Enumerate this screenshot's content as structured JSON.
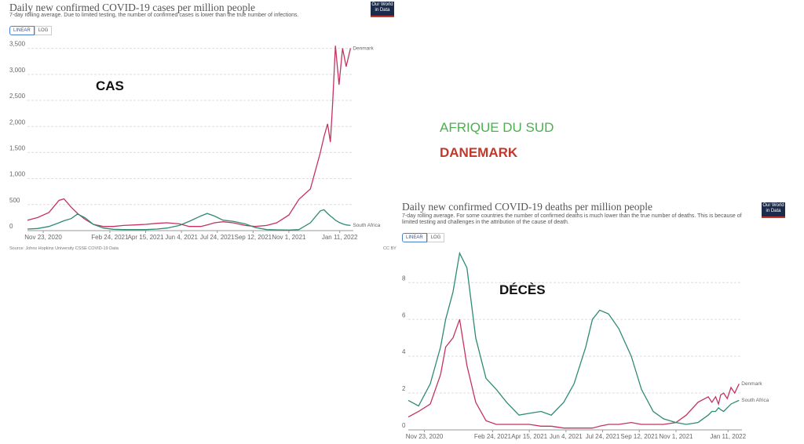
{
  "chart_data": [
    {
      "type": "line",
      "title": "Daily new confirmed COVID-19 cases per million people",
      "subtitle": "7-day rolling average. Due to limited testing, the number of confirmed cases is lower than the true number of infections.",
      "buttons": [
        "LINEAR",
        "LOG"
      ],
      "logo": "Our World in Data",
      "source": "Source: Johns Hopkins University CSSE COVID-19 Data",
      "license": "CC BY",
      "x": [
        "2020-11-01",
        "2020-11-15",
        "2020-12-01",
        "2020-12-15",
        "2020-12-22",
        "2021-01-01",
        "2021-01-10",
        "2021-01-20",
        "2021-02-01",
        "2021-02-15",
        "2021-03-01",
        "2021-03-15",
        "2021-04-01",
        "2021-04-15",
        "2021-05-01",
        "2021-05-15",
        "2021-06-01",
        "2021-06-15",
        "2021-07-01",
        "2021-07-10",
        "2021-07-20",
        "2021-08-01",
        "2021-08-15",
        "2021-09-01",
        "2021-09-15",
        "2021-10-01",
        "2021-10-15",
        "2021-11-01",
        "2021-11-15",
        "2021-12-01",
        "2021-12-15",
        "2021-12-20",
        "2021-12-25",
        "2021-12-29",
        "2022-01-01",
        "2022-01-05",
        "2022-01-10",
        "2022-01-15",
        "2022-01-20",
        "2022-01-26"
      ],
      "series": [
        {
          "name": "Denmark",
          "color": "#c4335f",
          "values": [
            200,
            250,
            350,
            580,
            610,
            450,
            330,
            220,
            120,
            80,
            80,
            100,
            110,
            120,
            140,
            150,
            130,
            80,
            80,
            110,
            150,
            170,
            150,
            100,
            80,
            100,
            150,
            300,
            600,
            800,
            1500,
            1800,
            2050,
            1700,
            2400,
            3550,
            2800,
            3500,
            3150,
            3500
          ]
        },
        {
          "name": "South Africa",
          "color": "#2f8a76",
          "values": [
            30,
            40,
            80,
            150,
            190,
            230,
            320,
            250,
            120,
            50,
            25,
            20,
            20,
            20,
            30,
            50,
            100,
            180,
            280,
            330,
            280,
            200,
            180,
            130,
            60,
            20,
            15,
            10,
            20,
            150,
            380,
            400,
            330,
            280,
            250,
            200,
            160,
            130,
            110,
            100
          ]
        }
      ],
      "xlim": [
        "2020-11-01",
        "2022-01-30"
      ],
      "xticks": [
        {
          "value": "2020-11-23",
          "label": "Nov 23, 2020"
        },
        {
          "value": "2021-02-24",
          "label": "Feb 24, 2021"
        },
        {
          "value": "2021-04-15",
          "label": "Apr 15, 2021"
        },
        {
          "value": "2021-06-04",
          "label": "Jun 4, 2021"
        },
        {
          "value": "2021-07-24",
          "label": "Jul 24, 2021"
        },
        {
          "value": "2021-09-12",
          "label": "Sep 12, 2021"
        },
        {
          "value": "2021-11-01",
          "label": "Nov 1, 2021"
        },
        {
          "value": "2022-01-11",
          "label": "Jan 11, 2022"
        }
      ],
      "ylim": [
        0,
        3600
      ],
      "yticks": [
        0,
        500,
        {
          "value": 1000,
          "label": "1,000"
        },
        {
          "value": 1500,
          "label": "1,500"
        },
        {
          "value": 2000,
          "label": "2,000"
        },
        {
          "value": 2500,
          "label": "2,500"
        },
        {
          "value": 3000,
          "label": "3,000"
        },
        {
          "value": 3500,
          "label": "3,500"
        }
      ],
      "grid": true
    },
    {
      "type": "line",
      "title": "Daily new confirmed COVID-19 deaths per million people",
      "subtitle": "7-day rolling average. For some countries the number of confirmed deaths is much lower than the true number of deaths. This is because of limited testing and challenges in the attribution of the cause of death.",
      "buttons": [
        "LINEAR",
        "LOG"
      ],
      "logo": "Our World in Data",
      "x": [
        "2020-11-01",
        "2020-11-15",
        "2020-12-01",
        "2020-12-15",
        "2020-12-22",
        "2021-01-01",
        "2021-01-10",
        "2021-01-20",
        "2021-02-01",
        "2021-02-15",
        "2021-03-01",
        "2021-03-15",
        "2021-04-01",
        "2021-04-15",
        "2021-05-01",
        "2021-05-15",
        "2021-06-01",
        "2021-06-15",
        "2021-07-01",
        "2021-07-10",
        "2021-07-20",
        "2021-08-01",
        "2021-08-15",
        "2021-09-01",
        "2021-09-15",
        "2021-10-01",
        "2021-10-15",
        "2021-11-01",
        "2021-11-15",
        "2021-12-01",
        "2021-12-15",
        "2021-12-20",
        "2021-12-25",
        "2021-12-29",
        "2022-01-01",
        "2022-01-05",
        "2022-01-10",
        "2022-01-15",
        "2022-01-20",
        "2022-01-26"
      ],
      "series": [
        {
          "name": "Denmark",
          "color": "#c4335f",
          "values": [
            0.7,
            1.0,
            1.4,
            3.0,
            4.5,
            5.0,
            6.0,
            3.5,
            1.5,
            0.5,
            0.3,
            0.3,
            0.3,
            0.3,
            0.2,
            0.2,
            0.1,
            0.1,
            0.1,
            0.1,
            0.2,
            0.3,
            0.3,
            0.4,
            0.3,
            0.3,
            0.3,
            0.4,
            0.8,
            1.5,
            1.8,
            1.5,
            1.8,
            1.4,
            1.9,
            2.0,
            1.7,
            2.3,
            2.0,
            2.5
          ]
        },
        {
          "name": "South Africa",
          "color": "#2f8a76",
          "values": [
            1.6,
            1.3,
            2.5,
            4.5,
            6.0,
            7.5,
            9.6,
            8.8,
            5.0,
            2.8,
            2.2,
            1.5,
            0.8,
            0.9,
            1.0,
            0.8,
            1.5,
            2.5,
            4.5,
            6.0,
            6.5,
            6.3,
            5.5,
            4.0,
            2.2,
            1.0,
            0.6,
            0.4,
            0.3,
            0.4,
            0.8,
            1.0,
            1.0,
            1.2,
            1.1,
            1.0,
            1.2,
            1.4,
            1.5,
            1.6
          ]
        }
      ],
      "xlim": [
        "2020-11-01",
        "2022-01-30"
      ],
      "xticks": [
        {
          "value": "2020-11-23",
          "label": "Nov 23, 2020"
        },
        {
          "value": "2021-02-24",
          "label": "Feb 24, 2021"
        },
        {
          "value": "2021-04-15",
          "label": "Apr 15, 2021"
        },
        {
          "value": "2021-06-04",
          "label": "Jun 4, 2021"
        },
        {
          "value": "2021-07-24",
          "label": "Jul 24, 2021"
        },
        {
          "value": "2021-09-12",
          "label": "Sep 12, 2021"
        },
        {
          "value": "2021-11-01",
          "label": "Nov 1, 2021"
        },
        {
          "value": "2022-01-11",
          "label": "Jan 11, 2022"
        }
      ],
      "ylim": [
        0,
        9.8
      ],
      "yticks": [
        0,
        2,
        4,
        6,
        8
      ],
      "grid": true
    }
  ],
  "annotations": [
    {
      "text": "CAS",
      "color": "#111111"
    },
    {
      "text": "AFRIQUE DU SUD",
      "color": "#4caf50"
    },
    {
      "text": "DANEMARK",
      "color": "#c0392b"
    },
    {
      "text": "DÉCÈS",
      "color": "#111111"
    }
  ]
}
